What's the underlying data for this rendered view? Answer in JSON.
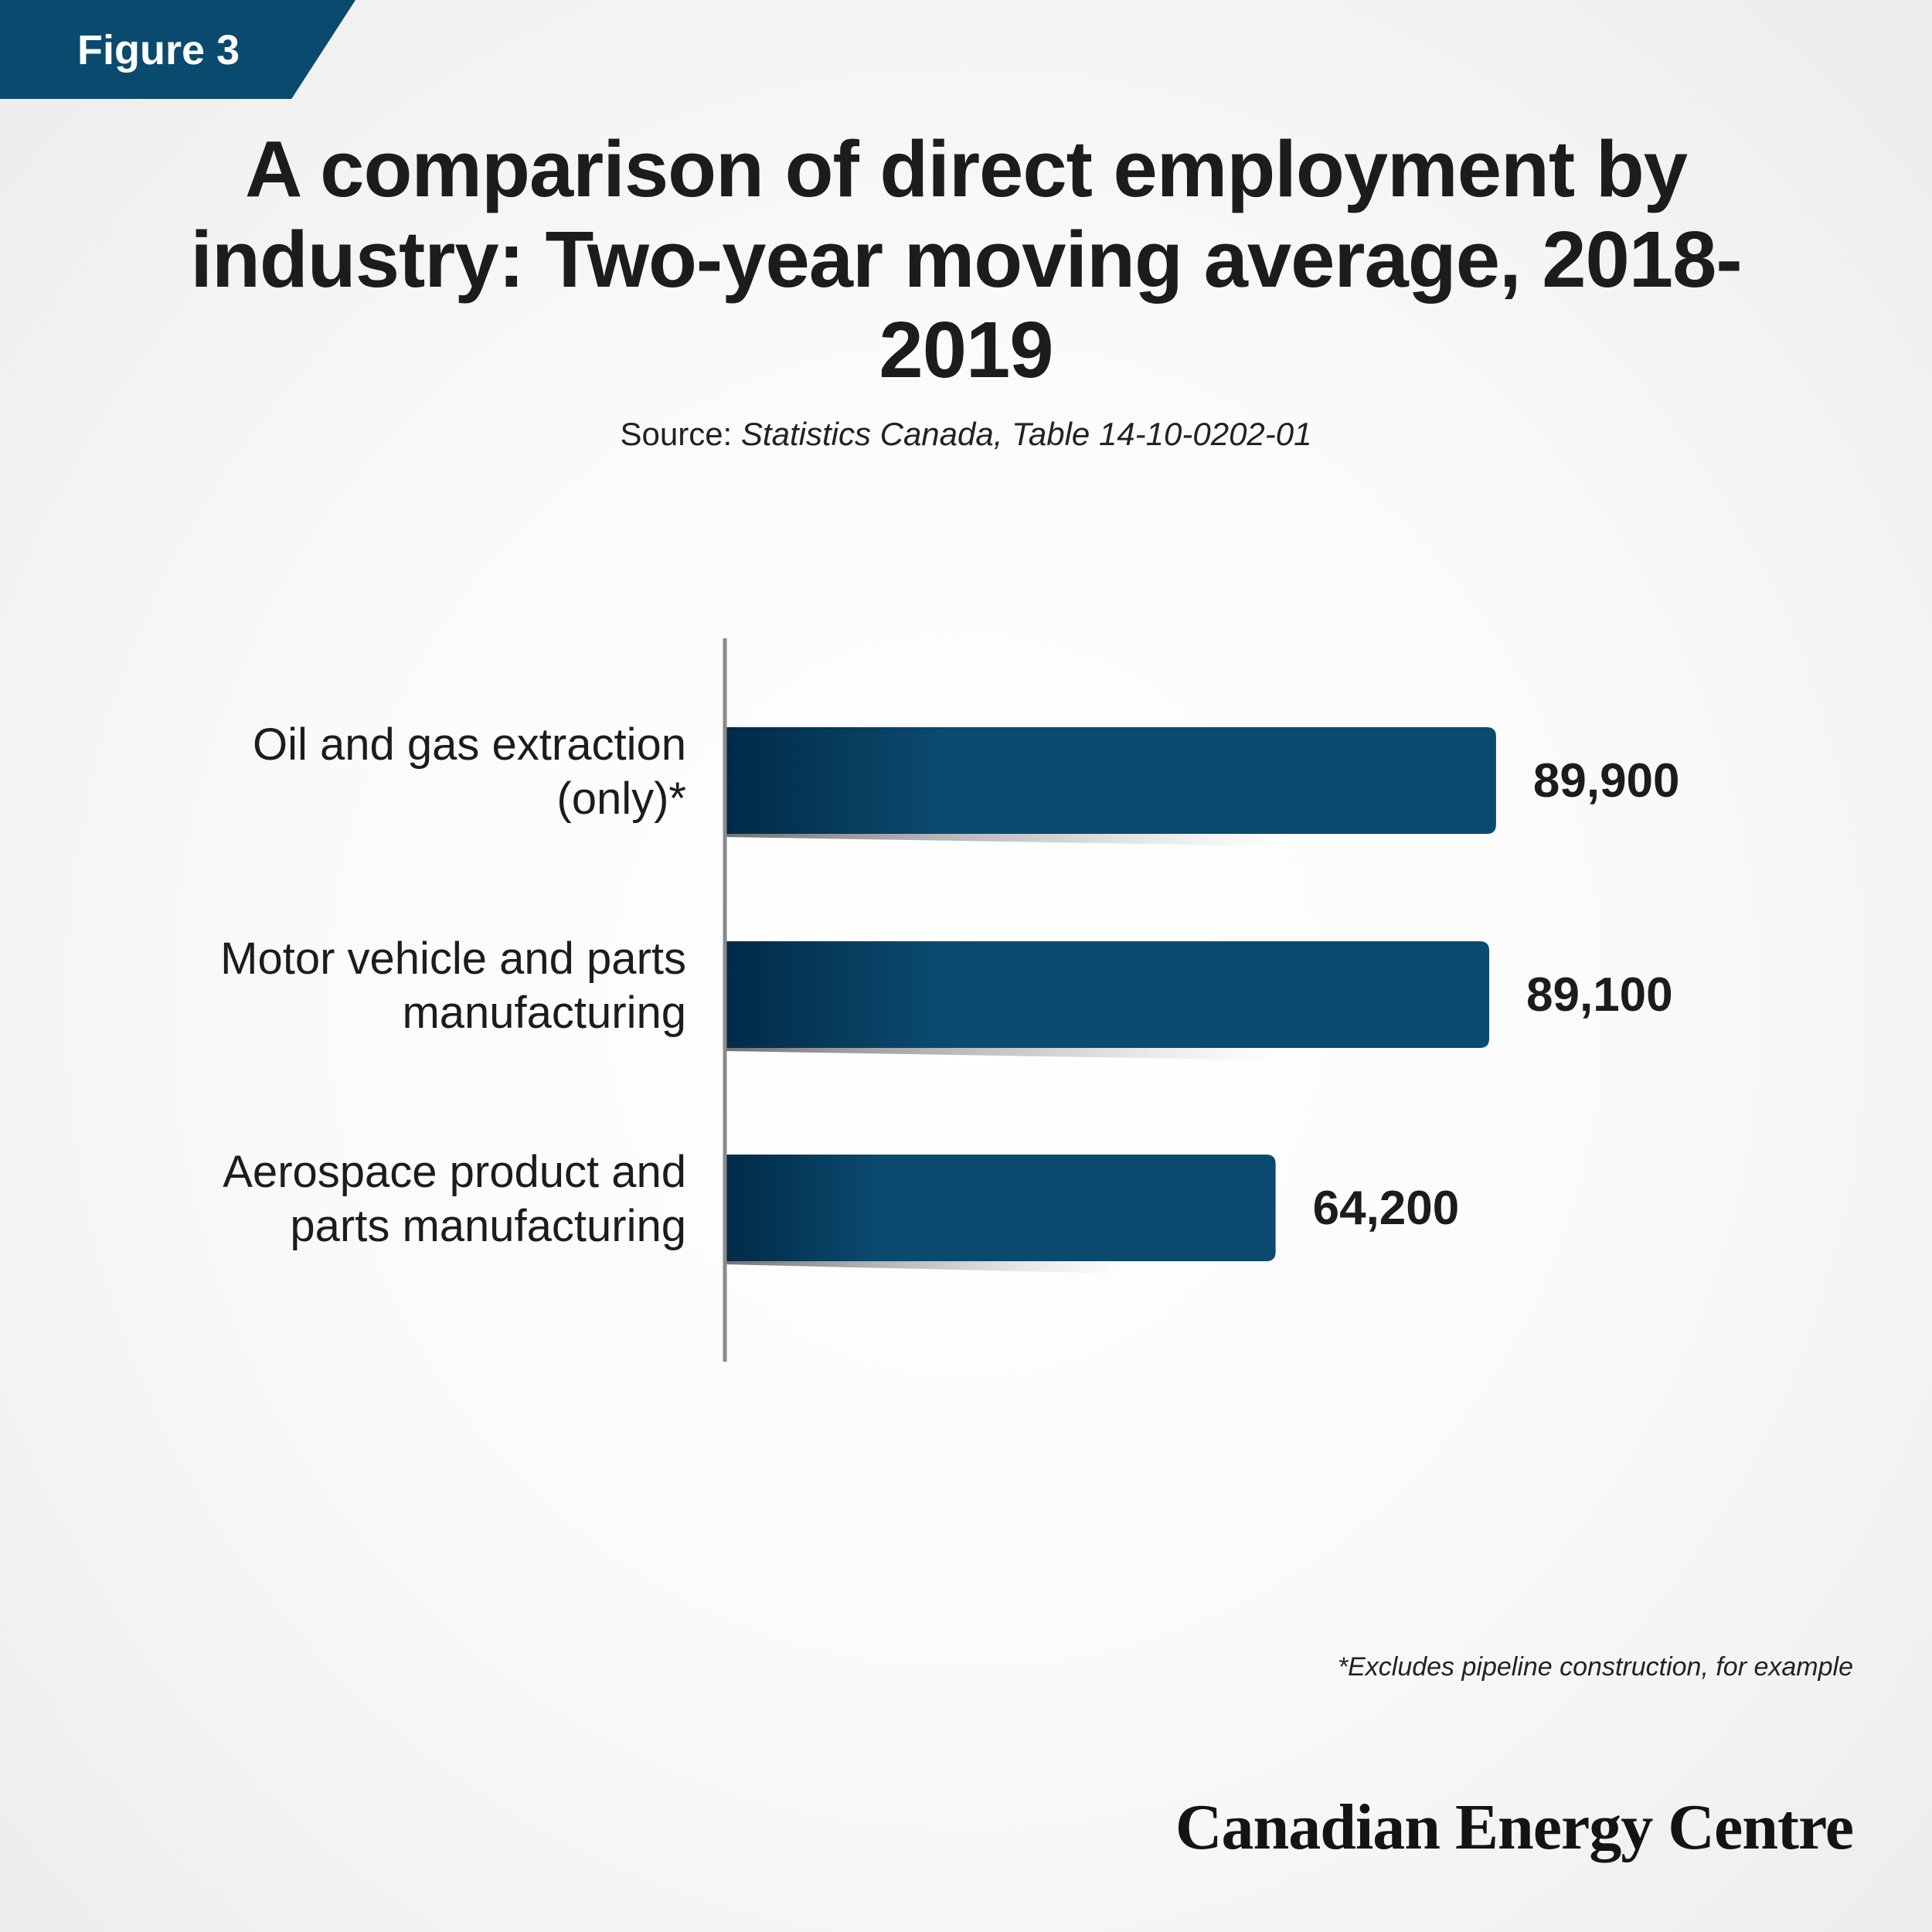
{
  "figure_label": "Figure 3",
  "title": "A comparison of direct employment by industry: Two-year moving average, 2018-2019",
  "source": {
    "prefix": "Source: ",
    "reference": "Statistics Canada, Table 14-10-0202-01"
  },
  "footnote": "*Excludes pipeline construction, for example",
  "brand": "Canadian Energy Centre",
  "colors": {
    "bar_dark": "#012a47",
    "bar_main": "#0b4a6f",
    "tab": "#0b4a6f",
    "axis": "#8a8a8a"
  },
  "chart_data": {
    "type": "bar",
    "orientation": "horizontal",
    "categories": [
      [
        "Oil and gas extraction",
        "(only)*"
      ],
      [
        "Motor vehicle and parts",
        "manufacturing"
      ],
      [
        "Aerospace product and",
        "parts manufacturing"
      ]
    ],
    "values": [
      89900,
      89100,
      64200
    ],
    "value_labels": [
      "89,900",
      "89,100",
      "64,200"
    ],
    "xlim": [
      0,
      100000
    ],
    "grid": false,
    "legend": "none"
  }
}
